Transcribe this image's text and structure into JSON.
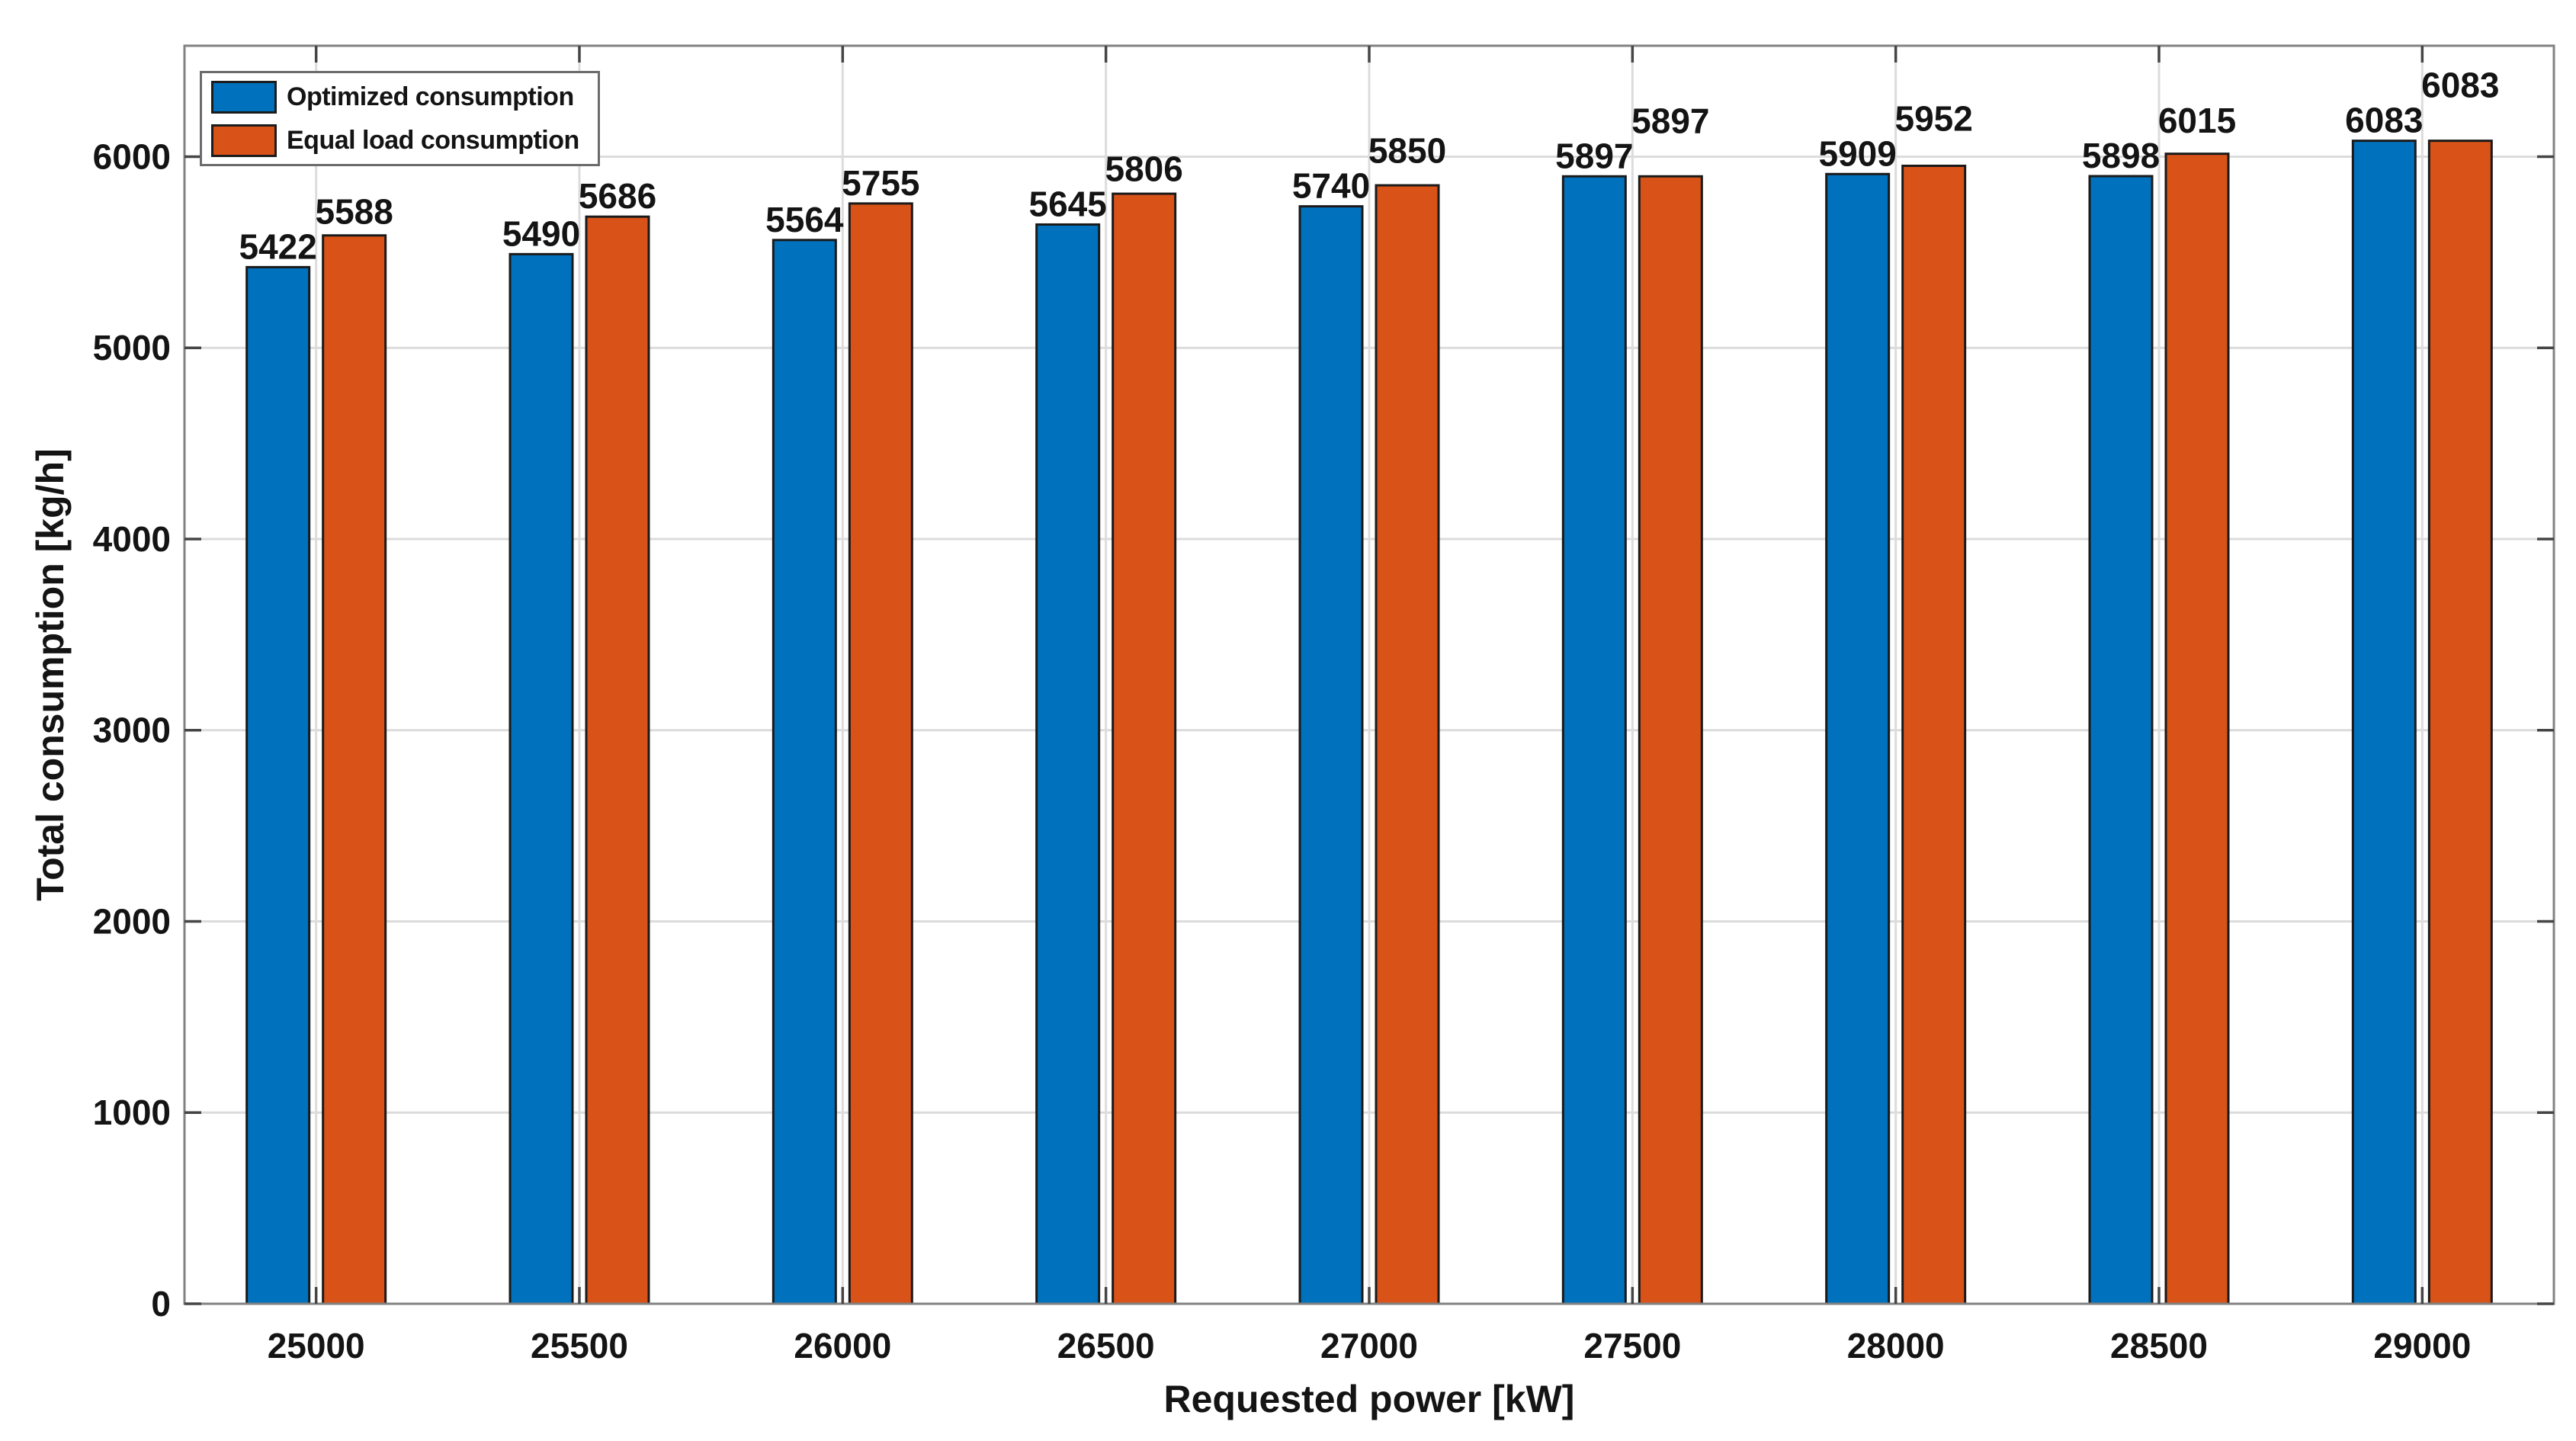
{
  "chart_data": {
    "type": "bar",
    "title": "",
    "xlabel": "Requested power [kW]",
    "ylabel": "Total consumption [kg/h]",
    "categories": [
      25000,
      25500,
      26000,
      26500,
      27000,
      27500,
      28000,
      28500,
      29000
    ],
    "series": [
      {
        "name": "Optimized consumption",
        "color": "#0072BD",
        "values": [
          5422,
          5490,
          5564,
          5645,
          5740,
          5897,
          5909,
          5898,
          6083
        ]
      },
      {
        "name": "Equal load consumption",
        "color": "#D95319",
        "values": [
          5588,
          5686,
          5755,
          5806,
          5850,
          5897,
          5952,
          6015,
          6083
        ]
      }
    ],
    "value_labels_shown": true,
    "yticks": [
      0,
      1000,
      2000,
      3000,
      4000,
      5000,
      6000
    ],
    "ylim": [
      0,
      6580
    ],
    "grid": "on",
    "legend_position": "northwest",
    "bar_edge_color": "#1a1a1a",
    "grid_color": "#dcdcdc",
    "axis_box_color": "#828282",
    "tick_color": "#454545",
    "text_color": "#141414",
    "background_color": "#ffffff"
  }
}
